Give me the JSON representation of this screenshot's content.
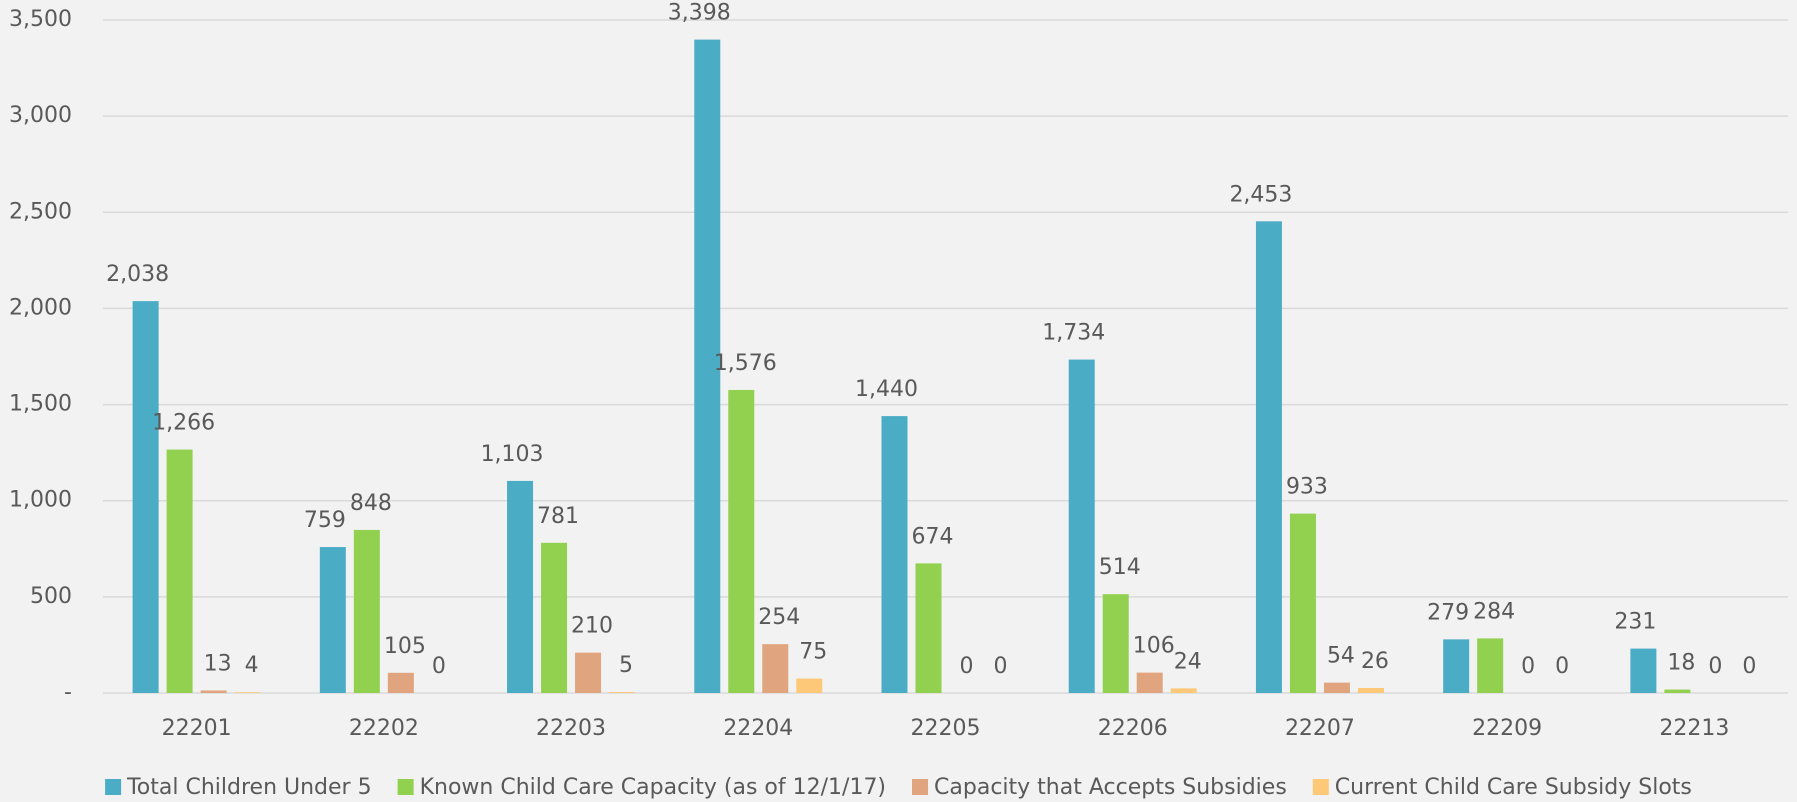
{
  "chart_data": {
    "type": "bar",
    "categories": [
      "22201",
      "22202",
      "22203",
      "22204",
      "22205",
      "22206",
      "22207",
      "22209",
      "22213"
    ],
    "series": [
      {
        "name": "Total Children Under 5",
        "color": "#4bacc6",
        "values": [
          2038,
          759,
          1103,
          3398,
          1440,
          1734,
          2453,
          279,
          231
        ],
        "value_labels": [
          "2,038",
          "759",
          "1,103",
          "3,398",
          "1,440",
          "1,734",
          "2,453",
          "279",
          "231"
        ]
      },
      {
        "name": "Known Child Care Capacity (as of 12/1/17)",
        "color": "#92d050",
        "values": [
          1266,
          848,
          781,
          1576,
          674,
          514,
          933,
          284,
          18
        ],
        "value_labels": [
          "1,266",
          "848",
          "781",
          "1,576",
          "674",
          "514",
          "933",
          "284",
          "18"
        ]
      },
      {
        "name": "Capacity that Accepts Subsidies",
        "color": "#e0a47f",
        "values": [
          13,
          105,
          210,
          254,
          0,
          106,
          54,
          0,
          0
        ]
      },
      {
        "name": "Current Child Care Subsidy Slots",
        "color": "#fdc877",
        "values": [
          4,
          0,
          5,
          75,
          0,
          24,
          26,
          0,
          0
        ]
      }
    ],
    "ylim": [
      0,
      3500
    ],
    "yticks": [
      {
        "value": 0,
        "label": "-"
      },
      500,
      {
        "value": 1000,
        "label": "1,000"
      },
      {
        "value": 1500,
        "label": "1,500"
      },
      {
        "value": 2000,
        "label": "2,000"
      },
      {
        "value": 2500,
        "label": "2,500"
      },
      {
        "value": 3000,
        "label": "3,000"
      },
      {
        "value": 3500,
        "label": "3,500"
      }
    ],
    "grid": true,
    "legend": "bottom"
  }
}
